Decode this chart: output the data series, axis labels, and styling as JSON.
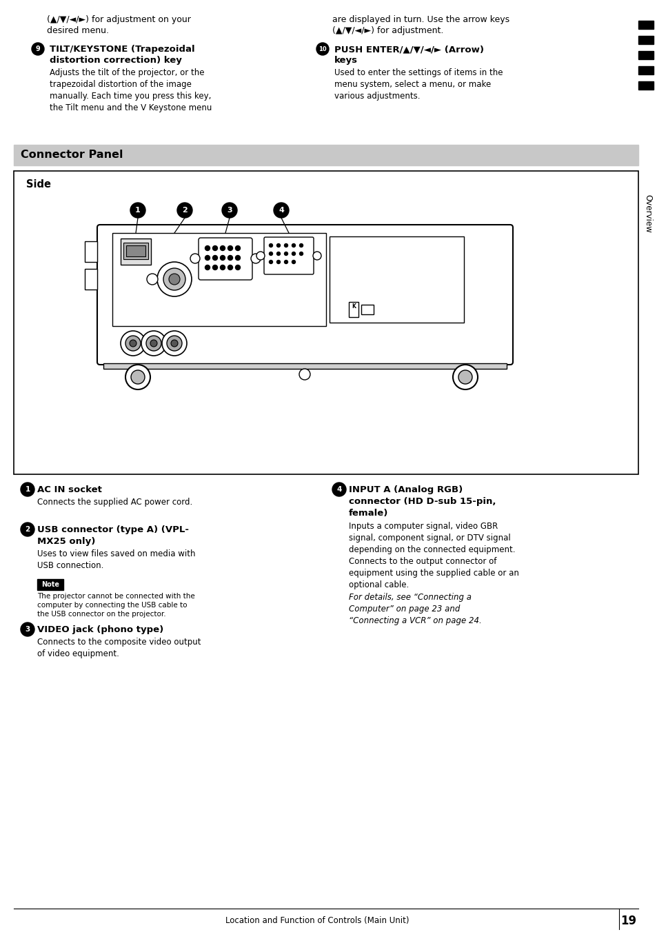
{
  "page_number": "19",
  "footer_text": "Location and Function of Controls (Main Unit)",
  "sidebar_text": "Overview",
  "bg_color": "#ffffff",
  "top_left_line1": "(▲/▼/◄/►) for adjustment on your",
  "top_left_line2": "desired menu.",
  "top_right_line1": "are displayed in turn. Use the arrow keys",
  "top_right_line2": "(▲/▼/◄/►) for adjustment.",
  "item9_title_line1": "TILT/KEYSTONE (Trapezoidal",
  "item9_title_line2": "distortion correction) key",
  "item9_body": "Adjusts the tilt of the projector, or the\ntrapezoidal distortion of the image\nmanually. Each time you press this key,\nthe Tilt menu and the V Keystone menu",
  "item10_title_line1": "PUSH ENTER/▲/▼/◄/► (Arrow)",
  "item10_title_line2": "keys",
  "item10_body": "Used to enter the settings of items in the\nmenu system, select a menu, or make\nvarious adjustments.",
  "section_title": "Connector Panel",
  "section_bg": "#c8c8c8",
  "diagram_label": "Side",
  "item1_title": "AC IN socket",
  "item1_body": "Connects the supplied AC power cord.",
  "item2_title_line1": "USB connector (type A) (VPL-",
  "item2_title_line2": "MX25 only)",
  "item2_body": "Uses to view files saved on media with\nUSB connection.",
  "note_label": "Note",
  "note_body": "The projector cannot be connected with the\ncomputer by connecting the USB cable to\nthe USB connector on the projector.",
  "item3_title": "VIDEO jack (phono type)",
  "item3_body": "Connects to the composite video output\nof video equipment.",
  "item4_title_line1": "INPUT A (Analog RGB)",
  "item4_title_line2": "connector (HD D-sub 15-pin,",
  "item4_title_line3": "female)",
  "item4_body": "Inputs a computer signal, video GBR\nsignal, component signal, or DTV signal\ndepending on the connected equipment.\nConnects to the output connector of\nequipment using the supplied cable or an\noptional cable.",
  "item4_italic": "For details, see “Connecting a\nComputer” on page 23 and\n“Connecting a VCR” on page 24."
}
